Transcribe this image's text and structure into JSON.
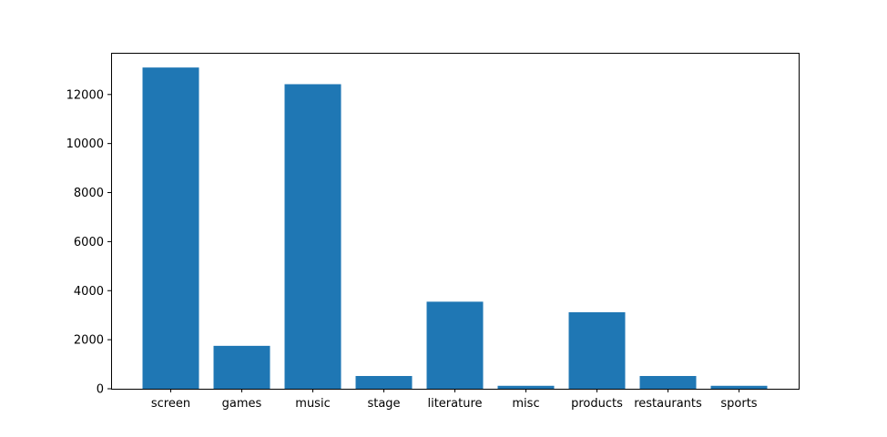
{
  "chart_data": {
    "type": "bar",
    "title": "",
    "xlabel": "",
    "ylabel": "",
    "categories": [
      "screen",
      "games",
      "music",
      "stage",
      "literature",
      "misc",
      "products",
      "restaurants",
      "sports"
    ],
    "values": [
      13100,
      1750,
      12420,
      520,
      3550,
      120,
      3120,
      520,
      120
    ],
    "ylim": [
      0,
      13700
    ],
    "yticks": [
      0,
      2000,
      4000,
      6000,
      8000,
      10000,
      12000
    ],
    "ytick_labels": [
      "0",
      "2000",
      "4000",
      "6000",
      "8000",
      "10000",
      "12000"
    ],
    "grid": false,
    "legend": "none",
    "bar_color": "#1f77b4"
  }
}
